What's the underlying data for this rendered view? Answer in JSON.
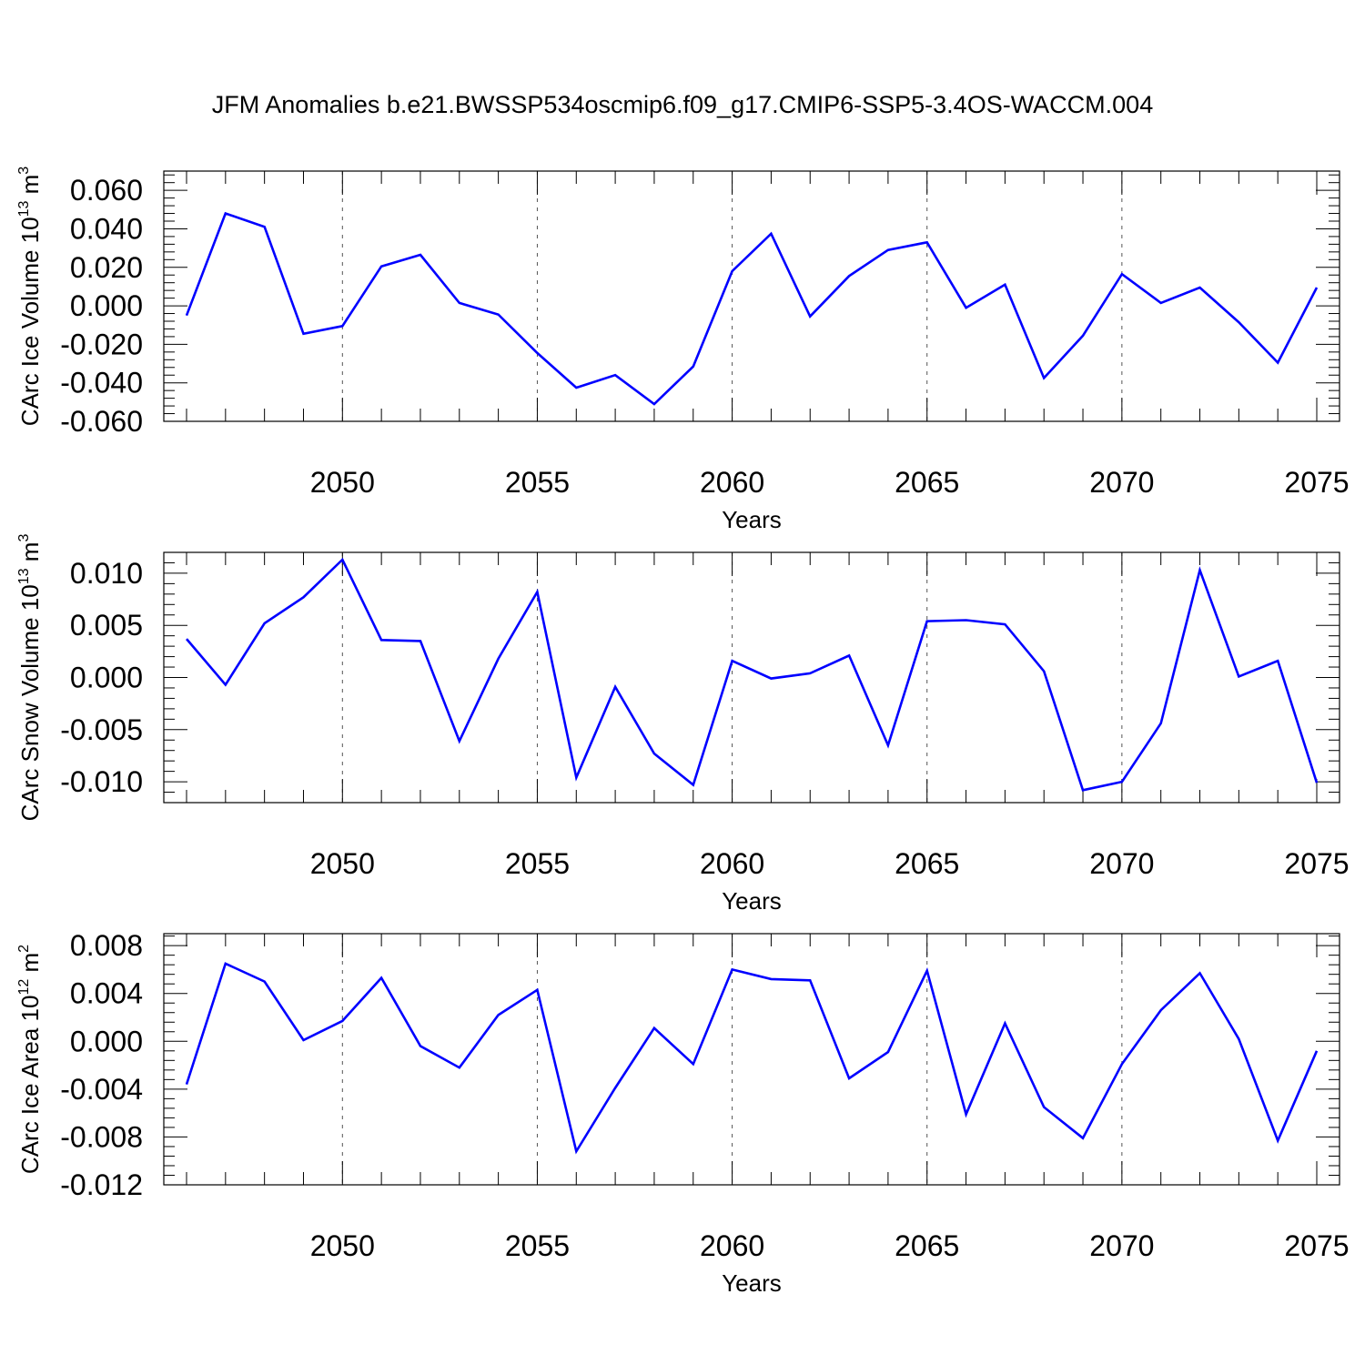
{
  "title": "JFM Anomalies b.e21.BWSSP534oscmip6.f09_g17.CMIP6-SSP5-3.4OS-WACCM.004",
  "chart_data": [
    {
      "type": "line",
      "ylabel": {
        "text": "CArc Ice Volume 10",
        "exponent": "13",
        "unit": "m",
        "unit_exponent": "3"
      },
      "xlabel": "Years",
      "xlim": [
        2046,
        2075
      ],
      "ylim": [
        -0.06,
        0.07
      ],
      "yticks": [
        -0.06,
        -0.04,
        -0.02,
        0.0,
        0.02,
        0.04,
        0.06
      ],
      "ytick_labels": [
        "-0.060",
        "-0.040",
        "-0.020",
        "0.000",
        "0.020",
        "0.040",
        "0.060"
      ],
      "xticks": [
        2050,
        2055,
        2060,
        2065,
        2070,
        2075
      ],
      "xtick_labels": [
        "2050",
        "2055",
        "2060",
        "2065",
        "2070",
        "2075"
      ],
      "grid": "vertical dashed at major x ticks",
      "line_color": "#0000ff",
      "x": [
        2046,
        2047,
        2048,
        2049,
        2050,
        2051,
        2052,
        2053,
        2054,
        2055,
        2056,
        2057,
        2058,
        2059,
        2060,
        2061,
        2062,
        2063,
        2064,
        2065,
        2066,
        2067,
        2068,
        2069,
        2070,
        2071,
        2072,
        2073,
        2074,
        2075
      ],
      "values": [
        -0.005,
        0.048,
        0.041,
        -0.0145,
        -0.0105,
        0.0205,
        0.0265,
        0.0015,
        -0.0045,
        -0.0245,
        -0.0425,
        -0.036,
        -0.051,
        -0.0315,
        0.018,
        0.0375,
        -0.0055,
        0.0155,
        0.029,
        0.033,
        -0.001,
        0.011,
        -0.0375,
        -0.0155,
        0.0165,
        0.0015,
        0.0095,
        -0.0085,
        -0.0295,
        0.0095
      ]
    },
    {
      "type": "line",
      "ylabel": {
        "text": "CArc Snow Volume 10",
        "exponent": "13",
        "unit": "m",
        "unit_exponent": "3"
      },
      "xlabel": "Years",
      "xlim": [
        2046,
        2075
      ],
      "ylim": [
        -0.012,
        0.012
      ],
      "yticks": [
        -0.01,
        -0.005,
        0.0,
        0.005,
        0.01
      ],
      "ytick_labels": [
        "-0.010",
        "-0.005",
        "0.000",
        "0.005",
        "0.010"
      ],
      "xticks": [
        2050,
        2055,
        2060,
        2065,
        2070,
        2075
      ],
      "xtick_labels": [
        "2050",
        "2055",
        "2060",
        "2065",
        "2070",
        "2075"
      ],
      "grid": "vertical dashed at major x ticks",
      "line_color": "#0000ff",
      "x": [
        2046,
        2047,
        2048,
        2049,
        2050,
        2051,
        2052,
        2053,
        2054,
        2055,
        2056,
        2057,
        2058,
        2059,
        2060,
        2061,
        2062,
        2063,
        2064,
        2065,
        2066,
        2067,
        2068,
        2069,
        2070,
        2071,
        2072,
        2073,
        2074,
        2075
      ],
      "values": [
        0.0037,
        -0.0007,
        0.0052,
        0.0077,
        0.0113,
        0.0036,
        0.0035,
        -0.0061,
        0.0018,
        0.0082,
        -0.0096,
        -0.0009,
        -0.0073,
        -0.0103,
        0.0016,
        -0.0001,
        0.0004,
        0.0021,
        -0.0065,
        0.0054,
        0.0055,
        0.0051,
        0.0006,
        -0.0108,
        -0.01,
        -0.0044,
        0.0103,
        0.0001,
        0.0016,
        -0.0101
      ]
    },
    {
      "type": "line",
      "ylabel": {
        "text": "CArc Ice Area 10",
        "exponent": "12",
        "unit": "m",
        "unit_exponent": "2"
      },
      "xlabel": "Years",
      "xlim": [
        2046,
        2075
      ],
      "ylim": [
        -0.012,
        0.009
      ],
      "yticks": [
        -0.012,
        -0.008,
        -0.004,
        0.0,
        0.004,
        0.008
      ],
      "ytick_labels": [
        "-0.012",
        "-0.008",
        "-0.004",
        "0.000",
        "0.004",
        "0.008"
      ],
      "xticks": [
        2050,
        2055,
        2060,
        2065,
        2070,
        2075
      ],
      "xtick_labels": [
        "2050",
        "2055",
        "2060",
        "2065",
        "2070",
        "2075"
      ],
      "grid": "vertical dashed at major x ticks",
      "line_color": "#0000ff",
      "x": [
        2046,
        2047,
        2048,
        2049,
        2050,
        2051,
        2052,
        2053,
        2054,
        2055,
        2056,
        2057,
        2058,
        2059,
        2060,
        2061,
        2062,
        2063,
        2064,
        2065,
        2066,
        2067,
        2068,
        2069,
        2070,
        2071,
        2072,
        2073,
        2074,
        2075
      ],
      "values": [
        -0.0036,
        0.0065,
        0.005,
        0.0001,
        0.0017,
        0.0053,
        -0.0004,
        -0.0022,
        0.0022,
        0.0043,
        -0.0092,
        -0.0039,
        0.0011,
        -0.0019,
        0.006,
        0.0052,
        0.0051,
        -0.0031,
        -0.0009,
        0.0059,
        -0.0061,
        0.0015,
        -0.0055,
        -0.0081,
        -0.0019,
        0.0026,
        0.0057,
        0.0002,
        -0.0083,
        -0.0008
      ]
    }
  ]
}
